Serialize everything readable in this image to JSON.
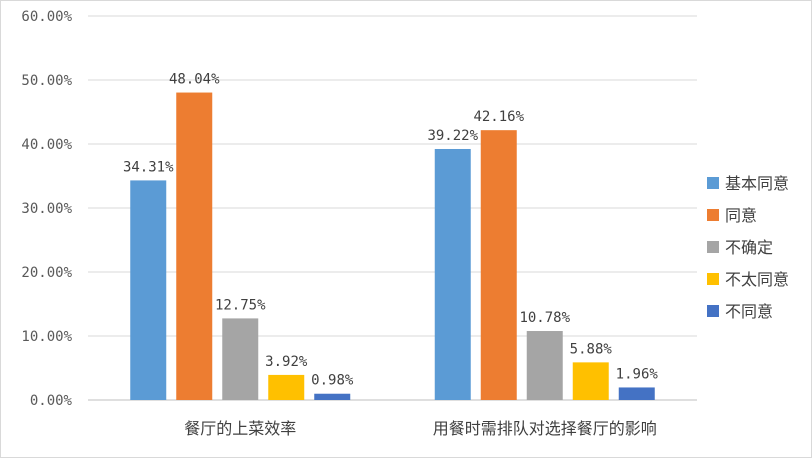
{
  "chart_data": {
    "type": "bar",
    "categories": [
      "餐厅的上菜效率",
      "用餐时需排队对选择餐厅的影响"
    ],
    "series": [
      {
        "name": "基本同意",
        "color": "#5b9bd5",
        "values": [
          34.31,
          39.22
        ],
        "labels": [
          "34.31%",
          "39.22%"
        ]
      },
      {
        "name": "同意",
        "color": "#ed7d31",
        "values": [
          48.04,
          42.16
        ],
        "labels": [
          "48.04%",
          "42.16%"
        ]
      },
      {
        "name": "不确定",
        "color": "#a5a5a5",
        "values": [
          12.75,
          10.78
        ],
        "labels": [
          "12.75%",
          "10.78%"
        ]
      },
      {
        "name": "不太同意",
        "color": "#ffc000",
        "values": [
          3.92,
          5.88
        ],
        "labels": [
          "3.92%",
          "5.88%"
        ]
      },
      {
        "name": "不同意",
        "color": "#4472c4",
        "values": [
          0.98,
          1.96
        ],
        "labels": [
          "0.98%",
          "1.96%"
        ]
      }
    ],
    "ylim": [
      0,
      60
    ],
    "yticks": [
      0,
      10,
      20,
      30,
      40,
      50,
      60
    ],
    "ytick_labels": [
      "0.00%",
      "10.00%",
      "20.00%",
      "30.00%",
      "40.00%",
      "50.00%",
      "60.00%"
    ],
    "grid": true,
    "legend": "right",
    "title": "",
    "xlabel": "",
    "ylabel": ""
  }
}
